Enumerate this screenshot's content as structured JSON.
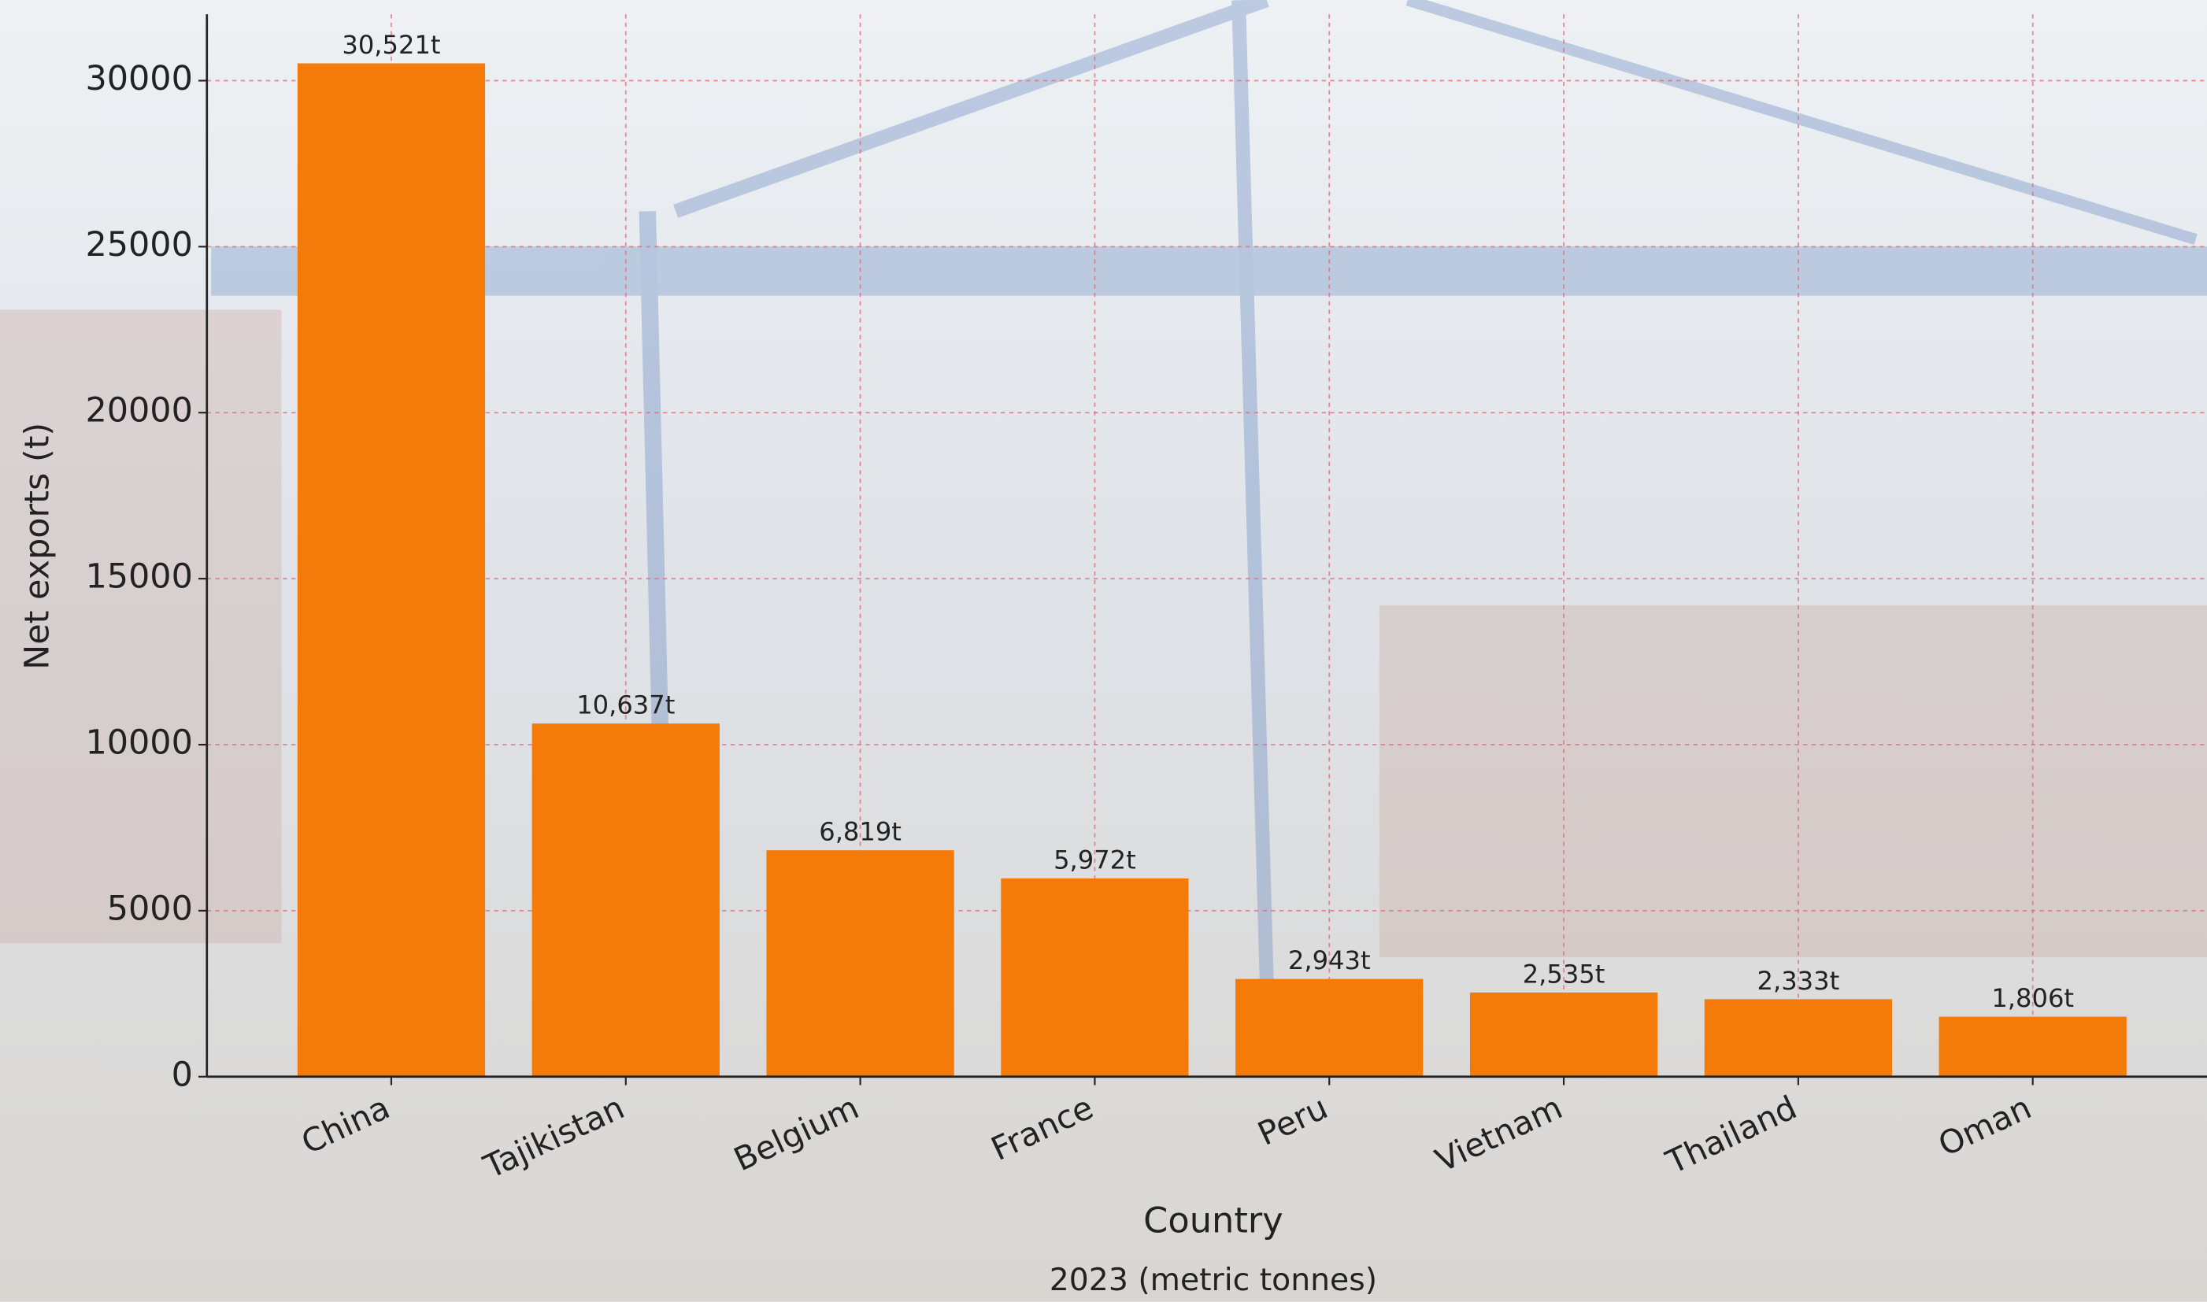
{
  "chart_data": {
    "type": "bar",
    "categories": [
      "China",
      "Tajikistan",
      "Belgium",
      "France",
      "Peru",
      "Vietnam",
      "Thailand",
      "Oman"
    ],
    "values": [
      30521,
      10637,
      6819,
      5972,
      2943,
      2535,
      2333,
      1806
    ],
    "value_labels": [
      "30,521t",
      "10,637t",
      "6,819t",
      "5,972t",
      "2,943t",
      "2,535t",
      "2,333t",
      "1,806t"
    ],
    "color": "#f47a0a",
    "ylim": [
      0,
      32000
    ],
    "yticks": [
      0,
      5000,
      10000,
      15000,
      20000,
      25000,
      30000
    ],
    "grid": true,
    "x_label": "Country",
    "y_label": "Net exports (t)",
    "subtitle": "2023 (metric tonnes)"
  }
}
